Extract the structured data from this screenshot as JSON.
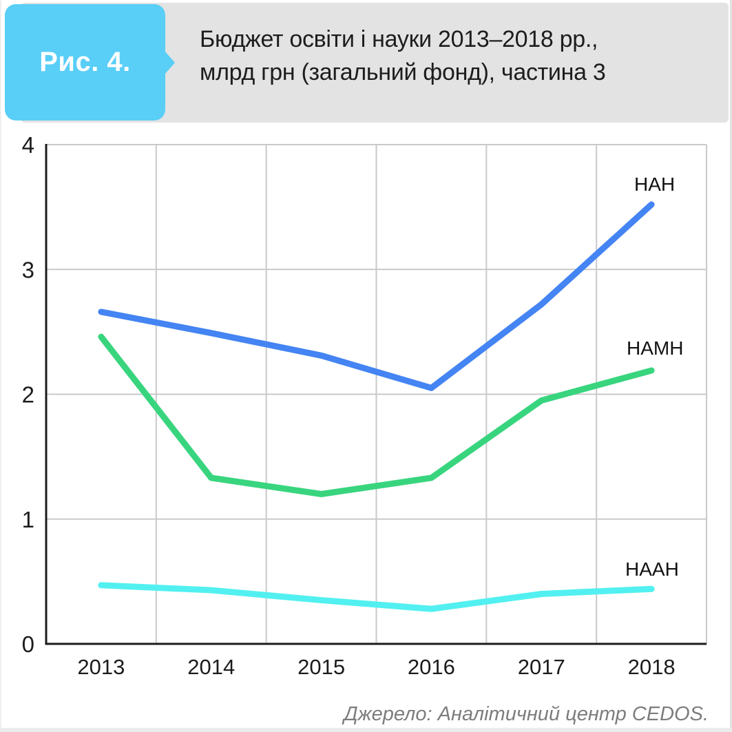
{
  "figure": {
    "badge": "Рис. 4.",
    "title_line1": "Бюджет освіти і науки 2013–2018 рр.,",
    "title_line2": "млрд грн (загальний фонд), частина 3",
    "source": "Джерело: Аналітичний центр CEDOS."
  },
  "colors": {
    "badge_bg": "#59cef7",
    "badge_text": "#ffffff",
    "header_bg": "#e3e3e3",
    "title_text": "#1d1d1d",
    "grid": "#c9c9c9",
    "axis": "#1b1b1b",
    "tick_text": "#1c1c1c",
    "series_label_text": "#111111",
    "source_text": "#7d7d7d",
    "nan_line": "#4484f3",
    "namn_line": "#38d57e",
    "naan_line": "#52f0f0"
  },
  "chart_data": {
    "type": "line",
    "title": "Бюджет освіти і науки 2013–2018 рр., млрд грн (загальний фонд), частина 3",
    "xlabel": "",
    "ylabel": "",
    "categories": [
      "2013",
      "2014",
      "2015",
      "2016",
      "2017",
      "2018"
    ],
    "series": [
      {
        "name": "НАН",
        "color": "#4484f3",
        "values": [
          2.66,
          2.49,
          2.31,
          2.05,
          2.72,
          3.52
        ]
      },
      {
        "name": "НАМН",
        "color": "#38d57e",
        "values": [
          2.46,
          1.33,
          1.2,
          1.33,
          1.95,
          2.19
        ]
      },
      {
        "name": "НААН",
        "color": "#52f0f0",
        "values": [
          0.47,
          0.43,
          0.35,
          0.28,
          0.4,
          0.44
        ]
      }
    ],
    "ylim": [
      0,
      4
    ],
    "yticks": [
      0,
      1,
      2,
      3,
      4
    ],
    "grid": true,
    "legend_position": "labels-at-line-ends"
  }
}
